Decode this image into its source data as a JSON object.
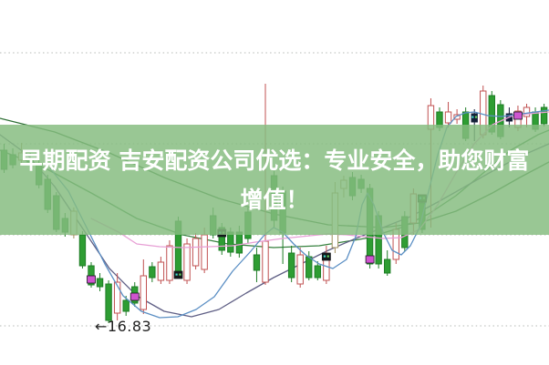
{
  "banner": {
    "line1": "早期配资 吉安配资公司优选：专业安全，助您财富",
    "line2": "增值！",
    "text_color": "#ffffff",
    "bg_color_rgba": "rgba(134,188,128,0.84)"
  },
  "chart_data": {
    "type": "candlestick",
    "title": "",
    "xlabel": "",
    "ylabel": "",
    "legend": [],
    "grid": {
      "horizontal_gridline_prices": [
        19.8,
        18.8,
        17.8,
        16.8
      ],
      "style": "dotted",
      "price_range_estimated": [
        16.5,
        20.0
      ]
    },
    "annotation": {
      "text": "←16.83",
      "value": 16.83,
      "candle_index": 12
    },
    "colors": {
      "up_candle_outline": "#c05050",
      "down_candle_fill": "#2e9d33",
      "down_candle_outline": "#1e7d26",
      "neutral_candle_outline": "#a08f5f",
      "dark_candle_fill": "#141f38",
      "marker_magenta": "#cf55cf",
      "marker_black": "#14181c",
      "marker_dkgreen": "#1d6b2a",
      "marker_dot_cyan": "#3fd9c9",
      "marker_dot_green": "#67d95f",
      "gridline": "#b5b9b5",
      "annotation_text": "#222222"
    },
    "candles": [
      [
        18.73,
        18.8,
        18.48,
        18.52,
        "g"
      ],
      [
        18.68,
        18.75,
        18.53,
        18.57,
        "g"
      ],
      [
        18.62,
        18.81,
        18.56,
        18.7,
        "t"
      ],
      [
        18.64,
        18.7,
        18.5,
        18.6,
        "g"
      ],
      [
        18.58,
        18.62,
        18.31,
        18.35,
        "g"
      ],
      [
        18.41,
        18.46,
        18.04,
        18.08,
        "g"
      ],
      [
        18.23,
        18.27,
        17.83,
        17.86,
        "g"
      ],
      [
        17.98,
        18.04,
        17.78,
        17.83,
        "g"
      ],
      [
        17.8,
        18.1,
        17.76,
        18.06,
        "t"
      ],
      [
        17.8,
        17.84,
        17.43,
        17.46,
        "g"
      ],
      [
        17.46,
        17.5,
        17.22,
        17.25,
        "g",
        "magenta",
        17.31
      ],
      [
        17.32,
        17.38,
        17.18,
        17.23,
        "g"
      ],
      [
        17.26,
        17.3,
        16.83,
        16.86,
        "g"
      ],
      [
        16.94,
        17.38,
        16.86,
        17.28,
        "r"
      ],
      [
        17.08,
        17.13,
        16.91,
        16.96,
        "g"
      ],
      [
        17.23,
        17.28,
        17.01,
        17.05,
        "g",
        "magenta",
        17.12
      ],
      [
        16.98,
        17.53,
        16.93,
        17.35,
        "r"
      ],
      [
        17.45,
        17.5,
        17.28,
        17.33,
        "g"
      ],
      [
        17.3,
        17.56,
        17.26,
        17.5,
        "r"
      ],
      [
        17.3,
        17.74,
        17.26,
        17.68,
        "r"
      ],
      [
        17.95,
        18.0,
        17.33,
        17.38,
        "g",
        "black",
        17.36
      ],
      [
        17.3,
        17.76,
        17.26,
        17.7,
        "r"
      ],
      [
        17.46,
        17.82,
        17.42,
        17.76,
        "r"
      ],
      [
        17.42,
        17.88,
        17.38,
        17.8,
        "r"
      ],
      [
        18.01,
        18.1,
        17.76,
        17.8,
        "g"
      ],
      [
        17.88,
        17.93,
        17.58,
        17.63,
        "g",
        "black",
        17.82
      ],
      [
        17.83,
        17.88,
        17.56,
        17.61,
        "g"
      ],
      [
        17.83,
        17.9,
        17.55,
        17.6,
        "g"
      ],
      [
        18.05,
        18.1,
        17.7,
        17.76,
        "g"
      ],
      [
        17.58,
        17.66,
        17.28,
        17.41,
        "g"
      ],
      [
        17.28,
        19.46,
        17.25,
        17.73,
        "r"
      ],
      [
        18.45,
        18.5,
        17.88,
        17.96,
        "g"
      ],
      [
        18.28,
        18.33,
        17.48,
        17.82,
        "g"
      ],
      [
        17.6,
        17.68,
        17.28,
        17.33,
        "g"
      ],
      [
        17.26,
        17.66,
        17.22,
        17.58,
        "r"
      ],
      [
        17.56,
        17.62,
        17.3,
        17.33,
        "g"
      ],
      [
        17.46,
        17.51,
        17.3,
        17.33,
        "g"
      ],
      [
        17.3,
        17.68,
        17.26,
        17.6,
        "r",
        "black",
        17.56
      ],
      [
        17.66,
        18.38,
        17.6,
        18.26,
        "t"
      ],
      [
        18.31,
        18.45,
        18.21,
        18.4,
        "t"
      ],
      [
        18.43,
        18.49,
        18.18,
        18.23,
        "g"
      ],
      [
        18.41,
        18.46,
        18.26,
        18.31,
        "g"
      ],
      [
        18.31,
        18.36,
        17.43,
        17.48,
        "g",
        "magenta",
        17.53
      ],
      [
        18.01,
        18.06,
        17.43,
        17.48,
        "g"
      ],
      [
        17.53,
        17.63,
        17.35,
        17.38,
        "g"
      ],
      [
        17.53,
        17.93,
        17.48,
        17.86,
        "r"
      ],
      [
        18.0,
        18.06,
        17.62,
        17.66,
        "g"
      ],
      [
        17.93,
        18.31,
        17.8,
        18.25,
        "r"
      ],
      [
        18.15,
        18.2,
        17.82,
        17.86,
        "g",
        "dkgreen",
        18.2
      ],
      [
        18.96,
        19.3,
        17.88,
        19.22,
        "r"
      ],
      [
        19.15,
        19.2,
        18.94,
        18.98,
        "g"
      ],
      [
        19.03,
        19.26,
        18.98,
        19.15,
        "r"
      ],
      [
        19.07,
        19.18,
        19.02,
        19.12,
        "r"
      ],
      [
        19.15,
        19.2,
        18.83,
        18.86,
        "g"
      ],
      [
        19.13,
        19.18,
        18.83,
        19.04,
        "d",
        "teal",
        19.09
      ],
      [
        18.9,
        19.44,
        18.86,
        19.38,
        "r"
      ],
      [
        19.33,
        19.38,
        18.9,
        18.93,
        "g"
      ],
      [
        19.23,
        19.28,
        18.85,
        18.88,
        "g"
      ],
      [
        19.13,
        19.2,
        18.98,
        19.05,
        "d"
      ],
      [
        18.98,
        19.22,
        18.94,
        19.16,
        "r",
        "magenta",
        19.11
      ],
      [
        19.1,
        19.24,
        18.98,
        19.2,
        "r"
      ],
      [
        19.15,
        19.2,
        18.93,
        18.96,
        "g"
      ],
      [
        19.2,
        19.24,
        18.99,
        19.02,
        "g"
      ]
    ],
    "ma_lines": [
      {
        "name": "ma-green-slow",
        "color": "#2e6f35",
        "layer": "back",
        "points": [
          [
            0,
            19.08
          ],
          [
            60,
            18.93
          ],
          [
            120,
            18.7
          ],
          [
            180,
            18.43
          ],
          [
            240,
            18.2
          ],
          [
            300,
            18.03
          ],
          [
            360,
            17.91
          ],
          [
            420,
            17.88
          ],
          [
            460,
            17.93
          ],
          [
            500,
            18.06
          ],
          [
            540,
            18.26
          ],
          [
            570,
            18.43
          ],
          [
            602,
            18.6
          ]
        ]
      },
      {
        "name": "ma-green-mid",
        "color": "#36813e",
        "layer": "back",
        "points": [
          [
            0,
            18.73
          ],
          [
            50,
            18.53
          ],
          [
            100,
            18.26
          ],
          [
            150,
            17.98
          ],
          [
            200,
            17.8
          ],
          [
            250,
            17.7
          ],
          [
            300,
            17.66
          ],
          [
            350,
            17.68
          ],
          [
            400,
            17.76
          ],
          [
            440,
            17.88
          ],
          [
            470,
            18.03
          ],
          [
            500,
            18.23
          ],
          [
            530,
            18.48
          ],
          [
            560,
            18.73
          ],
          [
            590,
            18.9
          ],
          [
            602,
            18.95
          ]
        ]
      },
      {
        "name": "ma-slate",
        "color": "#5f5f85",
        "layer": "back",
        "points": [
          [
            0,
            18.9
          ],
          [
            30,
            18.68
          ],
          [
            60,
            18.33
          ],
          [
            90,
            17.88
          ],
          [
            120,
            17.43
          ],
          [
            150,
            17.13
          ],
          [
            180,
            16.96
          ],
          [
            210,
            16.9
          ],
          [
            240,
            16.98
          ],
          [
            270,
            17.16
          ],
          [
            300,
            17.33
          ],
          [
            330,
            17.48
          ],
          [
            360,
            17.63
          ],
          [
            390,
            17.76
          ],
          [
            420,
            17.88
          ],
          [
            450,
            18.0
          ],
          [
            480,
            18.16
          ],
          [
            510,
            18.33
          ],
          [
            540,
            18.5
          ],
          [
            570,
            18.66
          ],
          [
            602,
            18.8
          ]
        ]
      },
      {
        "name": "ma-pink",
        "color": "#e79fd5",
        "layer": "front",
        "points": [
          [
            100,
            17.98
          ],
          [
            130,
            17.83
          ],
          [
            150,
            17.7
          ],
          [
            175,
            17.67
          ],
          [
            200,
            17.66
          ],
          [
            230,
            17.67
          ],
          [
            255,
            17.68
          ],
          [
            280,
            17.72
          ],
          [
            310,
            17.76
          ],
          [
            340,
            17.79
          ],
          [
            360,
            17.81
          ],
          [
            380,
            17.8
          ],
          [
            400,
            17.78
          ],
          [
            420,
            17.76
          ],
          [
            440,
            17.77
          ],
          [
            460,
            17.86
          ],
          [
            480,
            18.13
          ],
          [
            500,
            18.48
          ],
          [
            520,
            18.8
          ],
          [
            540,
            19.01
          ],
          [
            560,
            19.1
          ],
          [
            580,
            19.13
          ],
          [
            602,
            19.15
          ]
        ]
      },
      {
        "name": "ma-blue",
        "color": "#5b8fc4",
        "layer": "front",
        "points": [
          [
            55,
            18.53
          ],
          [
            75,
            18.28
          ],
          [
            95,
            17.88
          ],
          [
            115,
            17.48
          ],
          [
            135,
            17.13
          ],
          [
            155,
            16.96
          ],
          [
            175,
            16.89
          ],
          [
            195,
            16.9
          ],
          [
            215,
            16.98
          ],
          [
            235,
            17.12
          ],
          [
            255,
            17.4
          ],
          [
            275,
            17.62
          ],
          [
            290,
            17.8
          ],
          [
            300,
            17.88
          ],
          [
            310,
            17.83
          ],
          [
            322,
            17.7
          ],
          [
            335,
            17.58
          ],
          [
            350,
            17.48
          ],
          [
            365,
            17.43
          ],
          [
            380,
            17.53
          ],
          [
            390,
            17.78
          ],
          [
            397,
            18.13
          ],
          [
            403,
            18.26
          ],
          [
            410,
            18.13
          ],
          [
            420,
            17.83
          ],
          [
            430,
            17.63
          ],
          [
            440,
            17.58
          ],
          [
            450,
            17.68
          ],
          [
            460,
            17.88
          ],
          [
            470,
            18.28
          ],
          [
            480,
            18.68
          ],
          [
            490,
            18.98
          ],
          [
            500,
            19.1
          ],
          [
            510,
            19.14
          ],
          [
            520,
            19.15
          ],
          [
            535,
            19.11
          ],
          [
            550,
            19.1
          ],
          [
            565,
            19.12
          ],
          [
            580,
            19.14
          ],
          [
            602,
            19.17
          ]
        ]
      }
    ]
  }
}
